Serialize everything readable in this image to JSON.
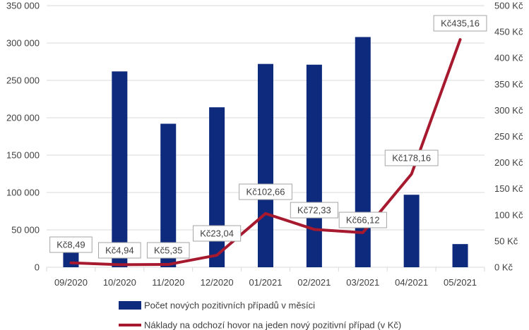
{
  "chart_data": {
    "type": "bar+line",
    "categories": [
      "09/2020",
      "10/2020",
      "11/2020",
      "12/2020",
      "01/2021",
      "02/2021",
      "03/2021",
      "04/2021",
      "05/2021"
    ],
    "series": [
      {
        "name": "Počet nových pozitivních případů v měsíci",
        "type": "bar",
        "axis": "left",
        "values": [
          21000,
          262000,
          192000,
          214000,
          272000,
          271000,
          308000,
          97000,
          31000
        ]
      },
      {
        "name": "Náklady na odchozí hovor na jeden nový pozitivní případ (v Kč)",
        "type": "line",
        "axis": "right",
        "values": [
          8.49,
          4.94,
          5.35,
          23.04,
          102.66,
          72.33,
          66.12,
          178.16,
          435.16
        ],
        "labels": [
          "Kč8,49",
          "Kč4,94",
          "Kč5,35",
          "Kč23,04",
          "Kč102,66",
          "Kč72,33",
          "Kč66,12",
          "Kč178,16",
          "Kč435,16"
        ]
      }
    ],
    "y_left": {
      "ylim": [
        0,
        350000
      ],
      "ticks": [
        0,
        50000,
        100000,
        150000,
        200000,
        250000,
        300000,
        350000
      ],
      "tick_labels": [
        "0",
        "50 000",
        "100 000",
        "150 000",
        "200 000",
        "250 000",
        "300 000",
        "350 000"
      ]
    },
    "y_right": {
      "ylim": [
        0,
        500
      ],
      "ticks": [
        0,
        50,
        100,
        150,
        200,
        250,
        300,
        350,
        400,
        450,
        500
      ],
      "tick_labels": [
        "0 Kč",
        "50 Kč",
        "100 Kč",
        "150 Kč",
        "200 Kč",
        "250 Kč",
        "300 Kč",
        "350 Kč",
        "400 Kč",
        "450 Kč",
        "500 Kč"
      ]
    },
    "grid": "horizontal",
    "legend_position": "bottom",
    "colors": {
      "bar": "#0e2a7d",
      "line": "#a6192e",
      "grid": "#d9d9d9"
    }
  }
}
